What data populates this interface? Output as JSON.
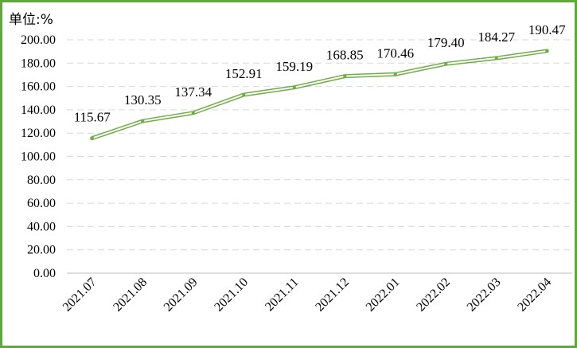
{
  "chart_data": {
    "type": "line",
    "unit_label": "单位:%",
    "categories": [
      "2021.07",
      "2021.08",
      "2021.09",
      "2021.10",
      "2021.11",
      "2021.12",
      "2022.01",
      "2022.02",
      "2022.03",
      "2022.04"
    ],
    "values": [
      115.67,
      130.35,
      137.34,
      152.91,
      159.19,
      168.85,
      170.46,
      179.4,
      184.27,
      190.47
    ],
    "value_labels": [
      "115.67",
      "130.35",
      "137.34",
      "152.91",
      "159.19",
      "168.85",
      "170.46",
      "179.40",
      "184.27",
      "190.47"
    ],
    "yticks": [
      "0.00",
      "20.00",
      "40.00",
      "60.00",
      "80.00",
      "100.00",
      "120.00",
      "140.00",
      "160.00",
      "180.00",
      "200.00"
    ],
    "ylim": [
      0,
      200
    ],
    "grid": true,
    "colors": {
      "line": "#70ad47",
      "border": "#5fa83a",
      "grid": "#d9d9d9"
    }
  }
}
